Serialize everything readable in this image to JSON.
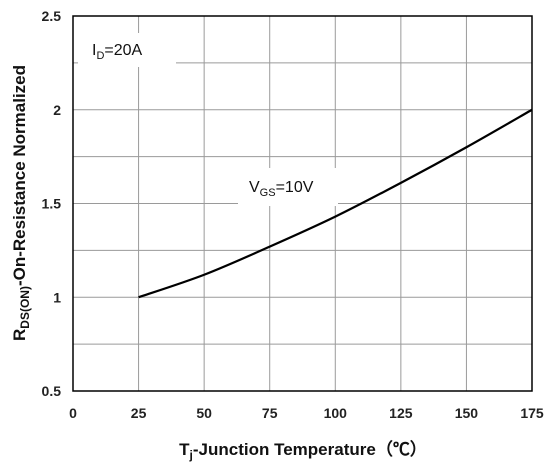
{
  "chart_data": {
    "type": "line",
    "xlabel": {
      "main": "T",
      "sub": "j",
      "rest": "-Junction Temperature（℃）"
    },
    "ylabel": {
      "main": "R",
      "sub": "DS(ON)",
      "rest": "-On-Resistance Normalized"
    },
    "xlim": [
      0,
      175
    ],
    "ylim": [
      0.5,
      2.5
    ],
    "x_ticks": [
      "0",
      "25",
      "50",
      "75",
      "100",
      "125",
      "150",
      "175"
    ],
    "y_ticks": [
      "0.5",
      "1",
      "1.5",
      "2",
      "2.5"
    ],
    "grid": true,
    "annotations": [
      {
        "main": "I",
        "sub": "D",
        "rest": "=20A"
      },
      {
        "main": "V",
        "sub": "GS",
        "rest": "=10V"
      }
    ],
    "series": [
      {
        "x": [
          25,
          50,
          75,
          100,
          125,
          150,
          175
        ],
        "y": [
          1.0,
          1.12,
          1.27,
          1.43,
          1.61,
          1.8,
          2.0
        ]
      }
    ],
    "colors": {
      "line": "#000000",
      "grid": "#9a9a9a",
      "frame": "#000000"
    }
  }
}
